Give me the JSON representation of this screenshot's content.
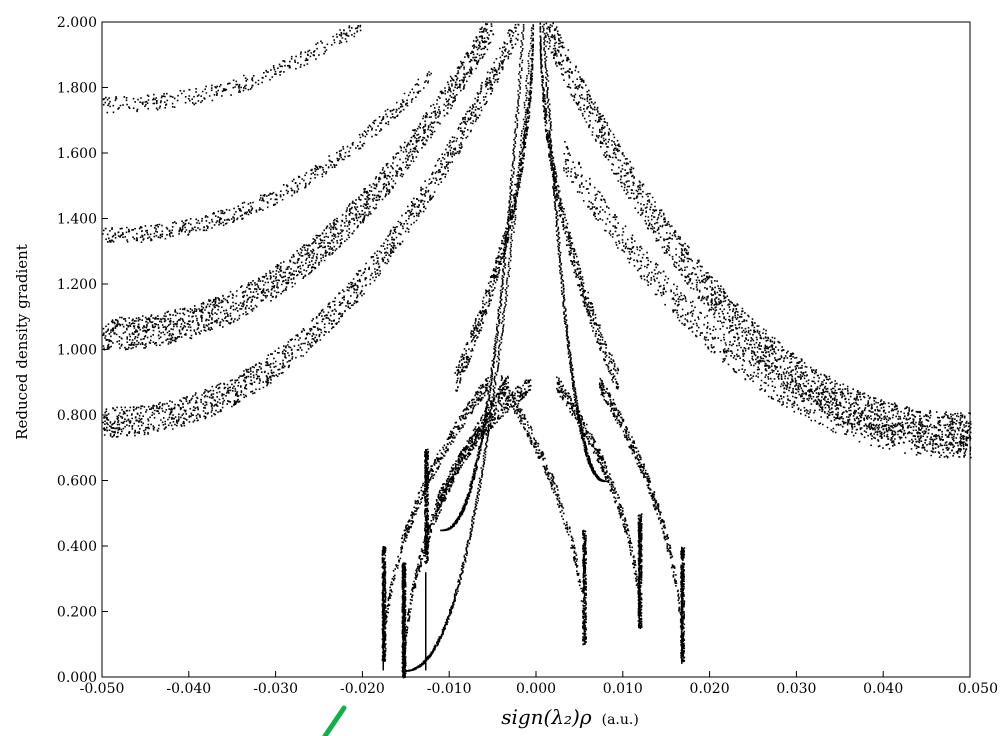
{
  "chart_data": {
    "type": "scatter",
    "title": "",
    "xlabel": "sign(λ₂)ρ",
    "xlabel_unit": "(a.u.)",
    "ylabel": "Reduced density gradient",
    "xlim": [
      -0.05,
      0.05
    ],
    "ylim": [
      0.0,
      2.0
    ],
    "grid": false,
    "legend": "none",
    "marker_color": "#000000",
    "annotation_color": "#12b04a",
    "xticks": [
      "-0.050",
      "-0.040",
      "-0.030",
      "-0.020",
      "-0.010",
      "0.000",
      "0.010",
      "0.020",
      "0.030",
      "0.040",
      "0.050"
    ],
    "yticks": [
      "0.000",
      "0.200",
      "0.400",
      "0.600",
      "0.800",
      "1.000",
      "1.200",
      "1.400",
      "1.600",
      "1.800",
      "2.000"
    ],
    "spikes": [
      {
        "x": -0.0176,
        "y": 0.02
      },
      {
        "x": -0.0153,
        "y": 0.0
      },
      {
        "x": -0.0127,
        "y": 0.02
      },
      {
        "x": 0.0119,
        "y": 0.15
      },
      {
        "x": 0.0168,
        "y": 0.04
      }
    ],
    "bands": [
      {
        "x0": -0.05,
        "y0": 1.05,
        "x1": -0.005,
        "y1": 2.0,
        "count": 1600,
        "spread": 0.1
      },
      {
        "x0": -0.05,
        "y0": 0.78,
        "x1": -0.002,
        "y1": 2.0,
        "count": 1400,
        "spread": 0.09
      },
      {
        "x0": -0.05,
        "y0": 1.35,
        "x1": -0.012,
        "y1": 1.85,
        "count": 500,
        "spread": 0.05
      },
      {
        "x0": -0.05,
        "y0": 1.75,
        "x1": -0.02,
        "y1": 2.0,
        "count": 300,
        "spread": 0.05
      },
      {
        "x0": 0.05,
        "y0": 0.75,
        "x1": 0.001,
        "y1": 2.0,
        "count": 2000,
        "spread": 0.12
      },
      {
        "x0": 0.05,
        "y0": 0.72,
        "x1": 0.003,
        "y1": 1.6,
        "count": 900,
        "spread": 0.1
      }
    ],
    "troughs": [
      {
        "x_min": -0.0153,
        "y_min": 0.0,
        "side": "left",
        "count": 500
      },
      {
        "x_min": -0.0127,
        "y_min": 0.35,
        "side": "left",
        "count": 400
      },
      {
        "x_min": -0.0176,
        "y_min": 0.05,
        "side": "left",
        "count": 400
      },
      {
        "x_min": 0.0119,
        "y_min": 0.15,
        "side": "right",
        "count": 400
      },
      {
        "x_min": 0.0168,
        "y_min": 0.05,
        "side": "right",
        "count": 400
      },
      {
        "x_min": 0.0055,
        "y_min": 0.1,
        "side": "right",
        "count": 300
      }
    ],
    "center_curves": [
      {
        "x_end": -0.0155,
        "y_end": 0.02,
        "x_top": -0.0005
      },
      {
        "x_end": -0.011,
        "y_end": 0.45,
        "x_top": -0.0015
      },
      {
        "x_end": 0.008,
        "y_end": 0.6,
        "x_top": 0.0008
      }
    ]
  }
}
